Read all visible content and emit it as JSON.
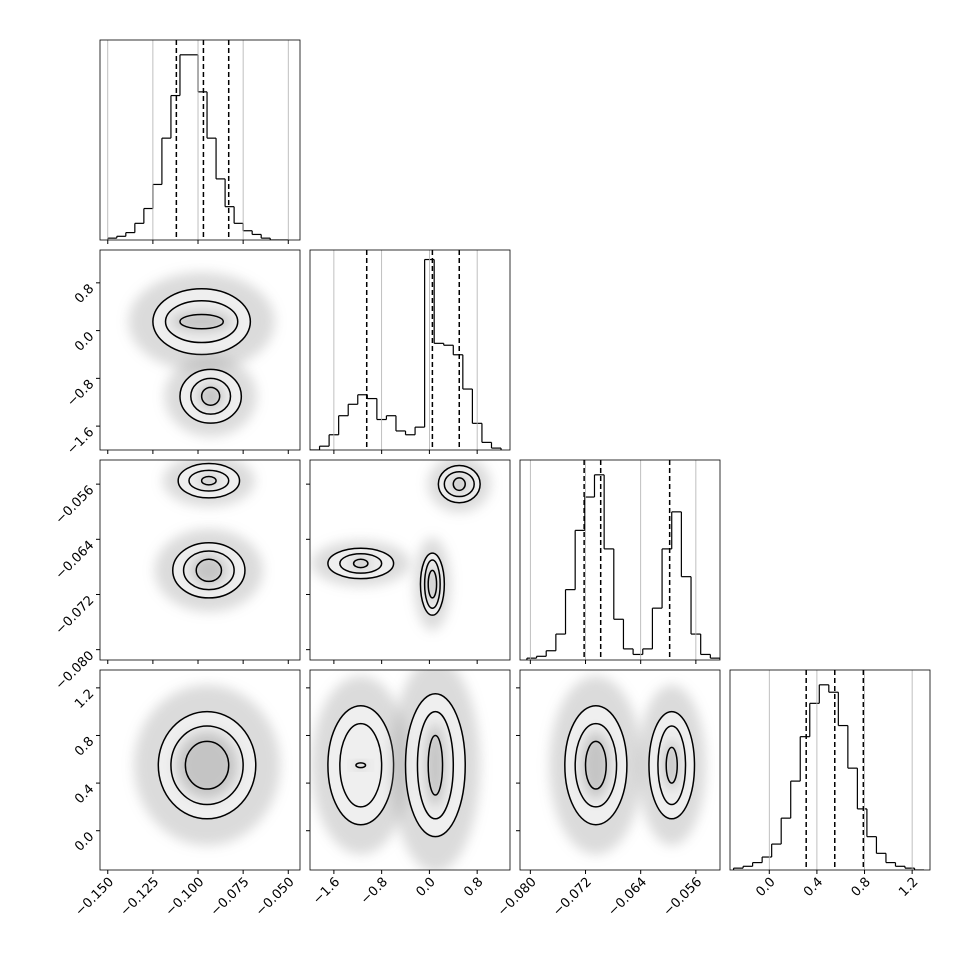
{
  "chart_data": {
    "type": "corner",
    "parameters": [
      {
        "lim": [
          -0.1543,
          -0.0435
        ],
        "ticks": [
          {
            "value": -0.15,
            "label": "−0.150"
          },
          {
            "value": -0.125,
            "label": "−0.125"
          },
          {
            "value": -0.1,
            "label": "−0.100"
          },
          {
            "value": -0.075,
            "label": "−0.075"
          },
          {
            "value": -0.05,
            "label": "−0.050"
          }
        ],
        "bins": [
          -0.15,
          -0.145,
          -0.14,
          -0.135,
          -0.13,
          -0.125,
          -0.12,
          -0.115,
          -0.11,
          -0.105,
          -0.1,
          -0.095,
          -0.09,
          -0.085,
          -0.08,
          -0.075,
          -0.07,
          -0.065,
          -0.06,
          -0.055,
          -0.05
        ],
        "counts": [
          1,
          2,
          4,
          9,
          17,
          30,
          55,
          78,
          100,
          100,
          80,
          55,
          33,
          18,
          9,
          5,
          3,
          1,
          0,
          0
        ],
        "count_lim": [
          0,
          108
        ],
        "quantiles": [
          -0.112,
          -0.097,
          -0.083
        ]
      },
      {
        "lim": [
          -2.0,
          1.35
        ],
        "ticks": [
          {
            "value": -1.6,
            "label": "−1.6"
          },
          {
            "value": -0.8,
            "label": "−0.8"
          },
          {
            "value": 0,
            "label": "0.0"
          },
          0.8
        ],
        "bins": [
          -2.0,
          -1.84,
          -1.68,
          -1.52,
          -1.36,
          -1.2,
          -1.04,
          -0.88,
          -0.72,
          -0.56,
          -0.4,
          -0.24,
          -0.08,
          0.08,
          0.24,
          0.4,
          0.56,
          0.72,
          0.88,
          1.04,
          1.2
        ],
        "counts": [
          0,
          2,
          8,
          18,
          24,
          29,
          27,
          16,
          18,
          10,
          8,
          12,
          100,
          56,
          55,
          50,
          32,
          14,
          4,
          1
        ],
        "count_lim": [
          0,
          105
        ],
        "quantiles": [
          -1.05,
          0.05,
          0.5
        ]
      },
      {
        "lim": [
          -0.0815,
          -0.0525
        ],
        "ticks": [
          {
            "value": -0.08,
            "label": "−0.080"
          },
          {
            "value": -0.072,
            "label": "−0.072"
          },
          {
            "value": -0.064,
            "label": "−0.064"
          },
          {
            "value": -0.056,
            "label": "−0.056"
          }
        ],
        "bins": [
          -0.0805,
          -0.0791,
          -0.0777,
          -0.0763,
          -0.0749,
          -0.0735,
          -0.0721,
          -0.0707,
          -0.0693,
          -0.0679,
          -0.0665,
          -0.0651,
          -0.0637,
          -0.0623,
          -0.0609,
          -0.0595,
          -0.0581,
          -0.0567,
          -0.0553,
          -0.0539,
          -0.0525
        ],
        "counts": [
          1,
          2,
          5,
          14,
          38,
          70,
          88,
          100,
          60,
          22,
          6,
          3,
          6,
          28,
          60,
          80,
          45,
          14,
          3,
          1
        ],
        "count_lim": [
          0,
          108
        ],
        "quantiles": [
          -0.0722,
          -0.0698,
          -0.0598
        ]
      },
      {
        "lim": [
          -0.33,
          1.35
        ],
        "ticks": [
          {
            "value": 0,
            "label": "0.0"
          },
          0.4,
          0.8,
          1.2
        ],
        "bins": [
          -0.3,
          -0.22,
          -0.14,
          -0.06,
          0.02,
          0.1,
          0.18,
          0.26,
          0.34,
          0.42,
          0.5,
          0.58,
          0.66,
          0.74,
          0.82,
          0.9,
          0.98,
          1.06,
          1.14,
          1.22,
          1.3
        ],
        "counts": [
          1,
          2,
          4,
          7,
          14,
          28,
          48,
          72,
          90,
          100,
          96,
          78,
          55,
          33,
          18,
          9,
          4,
          2,
          1,
          0
        ],
        "count_lim": [
          0,
          108
        ],
        "quantiles": [
          0.31,
          0.55,
          0.79
        ]
      }
    ],
    "panels": [
      {
        "x_param": 0,
        "y_param": 1,
        "blobs": [
          {
            "cx": -0.098,
            "cy": 0.15,
            "levels": [
              {
                "rx": 0.027,
                "ry": 0.55
              },
              {
                "rx": 0.02,
                "ry": 0.35
              },
              {
                "rx": 0.012,
                "ry": 0.12
              }
            ]
          },
          {
            "cx": -0.093,
            "cy": -1.1,
            "levels": [
              {
                "rx": 0.017,
                "ry": 0.45
              },
              {
                "rx": 0.011,
                "ry": 0.3
              },
              {
                "rx": 0.005,
                "ry": 0.15
              }
            ]
          }
        ]
      },
      {
        "x_param": 0,
        "y_param": 2,
        "blobs": [
          {
            "cx": -0.094,
            "cy": -0.0555,
            "levels": [
              {
                "rx": 0.017,
                "ry": 0.0025
              },
              {
                "rx": 0.011,
                "ry": 0.0015
              },
              {
                "rx": 0.004,
                "ry": 0.0006
              }
            ]
          },
          {
            "cx": -0.094,
            "cy": -0.0685,
            "levels": [
              {
                "rx": 0.02,
                "ry": 0.004
              },
              {
                "rx": 0.014,
                "ry": 0.0028
              },
              {
                "rx": 0.007,
                "ry": 0.0016
              }
            ]
          }
        ]
      },
      {
        "x_param": 1,
        "y_param": 2,
        "blobs": [
          {
            "cx": 0.5,
            "cy": -0.056,
            "levels": [
              {
                "rx": 0.35,
                "ry": 0.0027
              },
              {
                "rx": 0.25,
                "ry": 0.0018
              },
              {
                "rx": 0.1,
                "ry": 0.0009
              }
            ]
          },
          {
            "cx": -1.15,
            "cy": -0.0675,
            "levels": [
              {
                "rx": 0.55,
                "ry": 0.0022
              },
              {
                "rx": 0.35,
                "ry": 0.0014
              },
              {
                "rx": 0.12,
                "ry": 0.0006
              }
            ]
          },
          {
            "cx": 0.05,
            "cy": -0.0705,
            "levels": [
              {
                "rx": 0.2,
                "ry": 0.0045
              },
              {
                "rx": 0.13,
                "ry": 0.0035
              },
              {
                "rx": 0.07,
                "ry": 0.002
              }
            ]
          }
        ]
      },
      {
        "x_param": 0,
        "y_param": 3,
        "blobs": [
          {
            "cx": -0.095,
            "cy": 0.55,
            "levels": [
              {
                "rx": 0.027,
                "ry": 0.45
              },
              {
                "rx": 0.02,
                "ry": 0.33
              },
              {
                "rx": 0.012,
                "ry": 0.2
              }
            ]
          }
        ]
      },
      {
        "x_param": 1,
        "y_param": 3,
        "blobs": [
          {
            "cx": -1.15,
            "cy": 0.55,
            "levels": [
              {
                "rx": 0.55,
                "ry": 0.5
              },
              {
                "rx": 0.35,
                "ry": 0.35
              },
              {
                "rx": 0.08,
                "ry": 0.02
              }
            ]
          },
          {
            "cx": 0.1,
            "cy": 0.55,
            "levels": [
              {
                "rx": 0.5,
                "ry": 0.6
              },
              {
                "rx": 0.3,
                "ry": 0.45
              },
              {
                "rx": 0.12,
                "ry": 0.25
              }
            ]
          }
        ]
      },
      {
        "x_param": 2,
        "y_param": 3,
        "blobs": [
          {
            "cx": -0.0705,
            "cy": 0.55,
            "levels": [
              {
                "rx": 0.0045,
                "ry": 0.5
              },
              {
                "rx": 0.003,
                "ry": 0.35
              },
              {
                "rx": 0.0015,
                "ry": 0.2
              }
            ]
          },
          {
            "cx": -0.0595,
            "cy": 0.55,
            "levels": [
              {
                "rx": 0.0033,
                "ry": 0.45
              },
              {
                "rx": 0.002,
                "ry": 0.33
              },
              {
                "rx": 0.0008,
                "ry": 0.15
              }
            ]
          }
        ]
      }
    ]
  }
}
